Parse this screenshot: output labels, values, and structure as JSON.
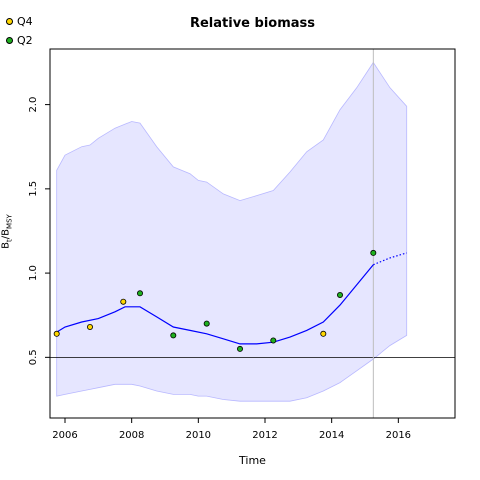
{
  "chart_data": {
    "type": "line",
    "title": "Relative biomass",
    "xlabel": "Time",
    "ylabel": {
      "main": "B",
      "sub1": "t",
      "sep": "/B",
      "sub2": "MSY"
    },
    "xlim": [
      2005.55,
      2017.7
    ],
    "ylim": [
      0.14,
      2.33
    ],
    "xticks": [
      2006,
      2008,
      2010,
      2012,
      2014,
      2016
    ],
    "yticks": [
      0.5,
      1.0,
      1.5,
      2.0
    ],
    "ytick_labels": [
      "0.5",
      "1.0",
      "1.5",
      "2.0"
    ],
    "reference_line_y": 0.5,
    "vertical_marker_x": 2015.25,
    "legend": [
      {
        "label": "Q4",
        "color": "#ffd700"
      },
      {
        "label": "Q2",
        "color": "#1fb01f"
      }
    ],
    "series": [
      {
        "name": "Q4",
        "color": "#ffd700",
        "x": [
          2005.75,
          2006.75,
          2007.75,
          2013.75
        ],
        "y": [
          0.64,
          0.68,
          0.83,
          0.64
        ]
      },
      {
        "name": "Q2",
        "color": "#1fb01f",
        "x": [
          2008.25,
          2009.25,
          2010.25,
          2011.25,
          2012.25,
          2014.25,
          2015.25
        ],
        "y": [
          0.88,
          0.63,
          0.7,
          0.55,
          0.6,
          0.87,
          1.12
        ]
      }
    ],
    "estimate": {
      "color": "#0000ff",
      "x": [
        2005.75,
        2006.0,
        2006.5,
        2007.0,
        2007.5,
        2007.8,
        2008.25,
        2008.75,
        2009.25,
        2009.75,
        2010.25,
        2010.75,
        2011.25,
        2011.75,
        2012.25,
        2012.75,
        2013.25,
        2013.75,
        2014.25,
        2014.75,
        2015.25
      ],
      "y": [
        0.65,
        0.68,
        0.71,
        0.73,
        0.77,
        0.8,
        0.8,
        0.74,
        0.68,
        0.66,
        0.64,
        0.61,
        0.58,
        0.58,
        0.59,
        0.62,
        0.66,
        0.71,
        0.81,
        0.93,
        1.05
      ]
    },
    "forecast": {
      "color": "#0000ff",
      "x": [
        2015.25,
        2015.75,
        2016.25
      ],
      "y": [
        1.05,
        1.09,
        1.12
      ]
    },
    "confidence_band": {
      "color": "#e6e6ff",
      "x": [
        2005.75,
        2006.0,
        2006.5,
        2006.75,
        2007.0,
        2007.5,
        2008.0,
        2008.25,
        2008.75,
        2009.25,
        2009.75,
        2010.0,
        2010.25,
        2010.75,
        2011.25,
        2011.75,
        2012.25,
        2012.75,
        2013.25,
        2013.75,
        2014.25,
        2014.75,
        2015.25,
        2015.75,
        2016.25
      ],
      "upper": [
        1.61,
        1.7,
        1.75,
        1.76,
        1.8,
        1.86,
        1.9,
        1.89,
        1.75,
        1.63,
        1.59,
        1.55,
        1.54,
        1.47,
        1.43,
        1.46,
        1.49,
        1.6,
        1.72,
        1.79,
        1.97,
        2.1,
        2.25,
        2.1,
        1.99
      ],
      "lower": [
        0.27,
        0.28,
        0.3,
        0.31,
        0.32,
        0.34,
        0.34,
        0.33,
        0.3,
        0.28,
        0.28,
        0.27,
        0.27,
        0.25,
        0.24,
        0.24,
        0.24,
        0.24,
        0.26,
        0.3,
        0.35,
        0.42,
        0.49,
        0.57,
        0.63
      ]
    }
  }
}
